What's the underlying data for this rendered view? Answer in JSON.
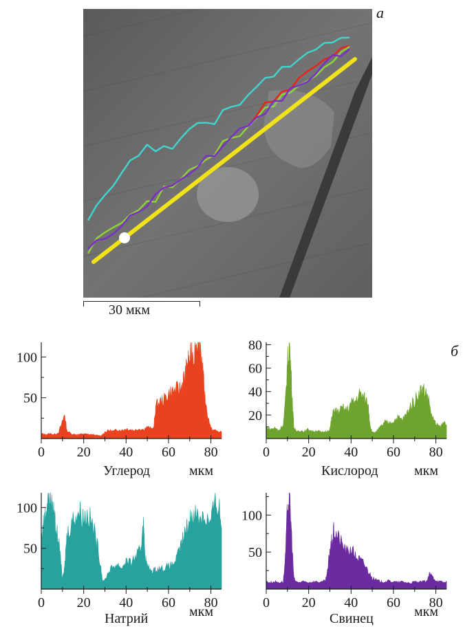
{
  "panel_labels": {
    "a": "а",
    "b": "б"
  },
  "scale_bar": {
    "label": "30 мкм",
    "length_um": 30
  },
  "micrograph": {
    "description_free": true,
    "scan_line_color": "#f2e21a",
    "overlay_colors": {
      "carbon": "#e8231a",
      "oxygen": "#8bd63a",
      "sodium": "#3fd6d0",
      "lead": "#7a2fc8"
    }
  },
  "chart_data": [
    {
      "type": "area",
      "title": "Углерод",
      "xlabel": "мкм",
      "color": "#e8431e",
      "xlim": [
        0,
        85
      ],
      "ylim": [
        0,
        118
      ],
      "xticks": [
        0,
        20,
        40,
        60,
        80
      ],
      "yticks": [
        50,
        100
      ],
      "x": [
        0,
        2,
        4,
        6,
        8,
        10,
        11,
        12,
        14,
        16,
        18,
        20,
        22,
        24,
        26,
        28,
        30,
        32,
        34,
        36,
        38,
        40,
        42,
        44,
        46,
        48,
        50,
        52,
        53,
        54,
        56,
        58,
        60,
        62,
        64,
        66,
        67,
        68,
        69,
        70,
        71,
        72,
        73,
        74,
        75,
        76,
        77,
        78,
        80,
        82,
        84,
        85
      ],
      "y": [
        6,
        5,
        6,
        5,
        7,
        20,
        30,
        10,
        6,
        5,
        5,
        6,
        5,
        5,
        4,
        3,
        8,
        10,
        9,
        11,
        10,
        12,
        11,
        10,
        12,
        11,
        14,
        12,
        12,
        40,
        45,
        48,
        55,
        58,
        60,
        62,
        72,
        78,
        95,
        92,
        110,
        100,
        115,
        108,
        112,
        90,
        55,
        35,
        12,
        10,
        8,
        8
      ]
    },
    {
      "type": "area",
      "title": "Кислород",
      "xlabel": "мкм",
      "color": "#6ea42e",
      "xlim": [
        0,
        85
      ],
      "ylim": [
        0,
        82
      ],
      "xticks": [
        0,
        20,
        40,
        60,
        80
      ],
      "yticks": [
        20,
        40,
        60,
        80
      ],
      "x": [
        0,
        2,
        4,
        6,
        8,
        9,
        10,
        11,
        12,
        13,
        14,
        16,
        18,
        20,
        22,
        24,
        26,
        28,
        30,
        31,
        32,
        34,
        36,
        38,
        40,
        42,
        44,
        46,
        48,
        49,
        50,
        52,
        54,
        56,
        58,
        60,
        62,
        64,
        66,
        68,
        70,
        72,
        74,
        76,
        78,
        80,
        82,
        84,
        85
      ],
      "y": [
        10,
        8,
        9,
        7,
        12,
        30,
        65,
        80,
        45,
        10,
        6,
        7,
        6,
        8,
        6,
        7,
        5,
        6,
        8,
        18,
        25,
        22,
        26,
        24,
        30,
        32,
        38,
        35,
        30,
        12,
        5,
        6,
        10,
        14,
        13,
        15,
        18,
        16,
        20,
        28,
        32,
        40,
        42,
        38,
        20,
        12,
        10,
        14,
        12
      ]
    },
    {
      "type": "area",
      "title": "Натрий",
      "xlabel": "мкм",
      "color": "#27a29e",
      "xlim": [
        0,
        85
      ],
      "ylim": [
        0,
        118
      ],
      "xticks": [
        0,
        20,
        40,
        60,
        80
      ],
      "yticks": [
        50,
        100
      ],
      "x": [
        0,
        1,
        2,
        3,
        4,
        5,
        6,
        7,
        8,
        9,
        10,
        11,
        12,
        14,
        16,
        18,
        20,
        22,
        24,
        26,
        28,
        29,
        30,
        32,
        34,
        36,
        38,
        40,
        42,
        44,
        46,
        47,
        48,
        49,
        50,
        52,
        54,
        56,
        58,
        60,
        62,
        64,
        66,
        68,
        70,
        72,
        74,
        76,
        78,
        80,
        82,
        84,
        85
      ],
      "y": [
        60,
        80,
        90,
        110,
        118,
        100,
        95,
        75,
        60,
        40,
        12,
        25,
        65,
        80,
        90,
        95,
        88,
        92,
        80,
        60,
        30,
        8,
        12,
        22,
        28,
        30,
        26,
        35,
        32,
        38,
        45,
        50,
        85,
        40,
        28,
        22,
        24,
        26,
        25,
        28,
        30,
        38,
        55,
        70,
        85,
        95,
        88,
        90,
        86,
        80,
        110,
        100,
        75
      ]
    },
    {
      "type": "area",
      "title": "Свинец",
      "xlabel": "мкм",
      "color": "#6a2aa0",
      "xlim": [
        0,
        85
      ],
      "ylim": [
        0,
        130
      ],
      "xticks": [
        0,
        20,
        40,
        60,
        80
      ],
      "yticks": [
        50,
        100
      ],
      "x": [
        0,
        2,
        4,
        6,
        8,
        9,
        10,
        11,
        12,
        13,
        14,
        16,
        18,
        20,
        22,
        24,
        26,
        28,
        29,
        30,
        31,
        32,
        34,
        36,
        38,
        40,
        42,
        44,
        46,
        48,
        50,
        52,
        54,
        56,
        58,
        60,
        62,
        64,
        66,
        68,
        70,
        72,
        74,
        76,
        77,
        78,
        80,
        82,
        84,
        85
      ],
      "y": [
        10,
        9,
        10,
        9,
        10,
        40,
        110,
        128,
        70,
        15,
        10,
        9,
        10,
        9,
        10,
        10,
        9,
        12,
        25,
        55,
        65,
        80,
        70,
        60,
        50,
        55,
        45,
        40,
        35,
        25,
        15,
        12,
        10,
        10,
        11,
        10,
        9,
        10,
        9,
        8,
        10,
        9,
        10,
        12,
        20,
        18,
        12,
        10,
        9,
        10
      ]
    }
  ],
  "micrograph_profiles": {
    "carbon": [
      70,
      72,
      75,
      80,
      85,
      90,
      95,
      98,
      100,
      110,
      118,
      125,
      140,
      150,
      165,
      180,
      200,
      215,
      230,
      250,
      270,
      285,
      295,
      300,
      310,
      330,
      345,
      355,
      360,
      365,
      370,
      372
    ],
    "oxygen": [
      60,
      62,
      66,
      70,
      72,
      75,
      80,
      88,
      95,
      100,
      105,
      112,
      120,
      128,
      135,
      145,
      155,
      160,
      170,
      180,
      190,
      200,
      210,
      215,
      220,
      228,
      235,
      240,
      250,
      255,
      258,
      260
    ],
    "sodium": [
      150,
      160,
      180,
      200,
      230,
      250,
      260,
      275,
      270,
      255,
      260,
      275,
      285,
      300,
      295,
      290,
      300,
      310,
      320,
      330,
      340,
      345,
      355,
      360,
      365,
      375,
      390,
      395,
      400,
      398,
      395,
      392
    ],
    "lead": [
      60,
      62,
      64,
      66,
      70,
      72,
      75,
      78,
      82,
      88,
      95,
      120,
      150,
      165,
      170,
      168,
      170,
      175,
      180,
      190,
      200,
      205,
      210,
      215,
      225,
      230,
      240,
      250,
      255,
      265,
      270,
      272
    ]
  }
}
